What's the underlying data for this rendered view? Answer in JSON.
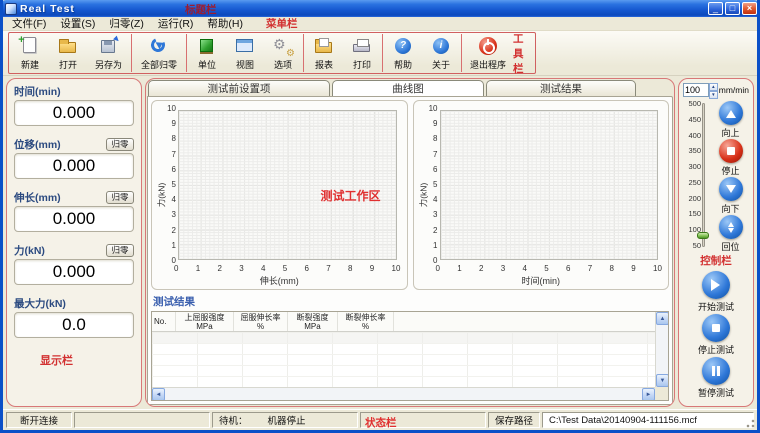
{
  "window": {
    "title": "Real Test"
  },
  "annotations": {
    "title_bar": "标题栏",
    "menu_bar": "菜单栏",
    "toolbar": "工具栏",
    "display_panel": "显示栏",
    "work_area": "测试工作区",
    "control_panel": "控制栏",
    "status_bar": "状态栏"
  },
  "menu": {
    "items": [
      {
        "label": "文件(F)"
      },
      {
        "label": "设置(S)"
      },
      {
        "label": "归零(Z)"
      },
      {
        "label": "运行(R)"
      },
      {
        "label": "帮助(H)"
      }
    ]
  },
  "toolbar": {
    "items": [
      {
        "label": "新建",
        "icon": "new-file"
      },
      {
        "label": "打开",
        "icon": "open-folder"
      },
      {
        "label": "另存为",
        "icon": "save-as"
      },
      {
        "label": "全部归零",
        "icon": "zero-all"
      },
      {
        "label": "单位",
        "icon": "unit-cube"
      },
      {
        "label": "视图",
        "icon": "view-window"
      },
      {
        "label": "选项",
        "icon": "options-gears"
      },
      {
        "label": "报表",
        "icon": "report-folder"
      },
      {
        "label": "打印",
        "icon": "printer"
      },
      {
        "label": "帮助",
        "icon": "help-circle"
      },
      {
        "label": "关于",
        "icon": "about-circle"
      },
      {
        "label": "退出程序",
        "icon": "exit-power"
      }
    ],
    "help_glyph": "?",
    "about_glyph": "i",
    "new_plus_glyph": "+"
  },
  "display": {
    "fields": [
      {
        "label": "时间(min)",
        "value": "0.000",
        "zero_button": ""
      },
      {
        "label": "位移(mm)",
        "value": "0.000",
        "zero_button": "归零"
      },
      {
        "label": "伸长(mm)",
        "value": "0.000",
        "zero_button": "归零"
      },
      {
        "label": "力(kN)",
        "value": "0.000",
        "zero_button": "归零"
      },
      {
        "label": "最大力(kN)",
        "value": "0.0",
        "zero_button": ""
      }
    ]
  },
  "tabs": {
    "items": [
      {
        "label": "测试前设置项",
        "active": false
      },
      {
        "label": "曲线图",
        "active": true
      },
      {
        "label": "测试结果",
        "active": false
      }
    ]
  },
  "chart_data": [
    {
      "type": "line",
      "title": "",
      "xlabel": "伸长(mm)",
      "ylabel": "力(kN)",
      "xlim": [
        0,
        10
      ],
      "ylim": [
        0,
        10
      ],
      "xticks": [
        0,
        1,
        2,
        3,
        4,
        5,
        6,
        7,
        8,
        9,
        10
      ],
      "yticks": [
        10,
        9,
        8,
        7,
        6,
        5,
        4,
        3,
        2,
        1,
        0
      ],
      "grid": true,
      "series": []
    },
    {
      "type": "line",
      "title": "",
      "xlabel": "时间(min)",
      "ylabel": "力(kN)",
      "xlim": [
        0,
        10
      ],
      "ylim": [
        0,
        10
      ],
      "xticks": [
        0,
        1,
        2,
        3,
        4,
        5,
        6,
        7,
        8,
        9,
        10
      ],
      "yticks": [
        10,
        9,
        8,
        7,
        6,
        5,
        4,
        3,
        2,
        1,
        0
      ],
      "grid": true,
      "series": []
    }
  ],
  "results": {
    "title": "测试结果",
    "columns": [
      {
        "name": "No.",
        "unit": ""
      },
      {
        "name": "上屈服强度",
        "unit": "MPa"
      },
      {
        "name": "屈服伸长率",
        "unit": "%"
      },
      {
        "name": "断裂强度",
        "unit": "MPa"
      },
      {
        "name": "断裂伸长率",
        "unit": "%"
      }
    ],
    "rows": []
  },
  "control": {
    "speed_value": "100",
    "speed_unit": "mm/min",
    "slider_ticks": [
      500,
      450,
      400,
      350,
      300,
      250,
      200,
      150,
      100,
      50
    ],
    "slider_value": 100,
    "jog_buttons": [
      {
        "label": "向上",
        "icon": "up-arrow"
      },
      {
        "label": "停止",
        "icon": "stop-red"
      },
      {
        "label": "向下",
        "icon": "down-arrow"
      },
      {
        "label": "回位",
        "icon": "return-home"
      }
    ],
    "test_buttons": [
      {
        "label": "开始测试",
        "icon": "play"
      },
      {
        "label": "停止测试",
        "icon": "stop"
      },
      {
        "label": "暂停测试",
        "icon": "pause"
      }
    ]
  },
  "statusbar": {
    "connection": "断开连接",
    "standby_label": "待机：",
    "machine_state": "机器停止",
    "save_path_label": "保存路径",
    "save_path": "C:\\Test Data\\20140904-111156.mcf"
  },
  "colors": {
    "annotation_red": "#d23030",
    "titlebar_blue": "#1557cf",
    "xp_face": "#ece9d8",
    "button_blue": "#2f78d8",
    "stop_red": "#d83018"
  }
}
